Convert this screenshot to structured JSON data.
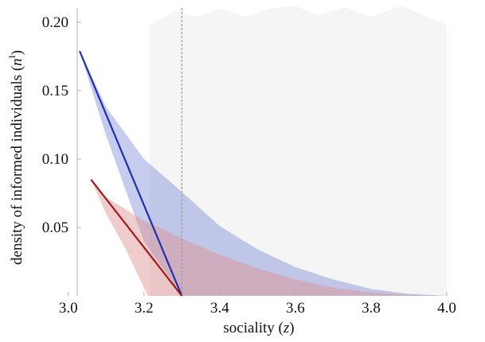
{
  "chart_data": {
    "type": "area",
    "xlabel": "sociality (",
    "xlabel_var": "z",
    "xlabel_close": ")",
    "ylabel": "density of informed individuals (",
    "ylabel_var": "n",
    "ylabel_sup": "I",
    "ylabel_close": ")",
    "xlim": [
      2.95,
      4.0
    ],
    "ylim": [
      0.0,
      0.2
    ],
    "x_ticks": [
      {
        "value": 3.0,
        "label": "3.0"
      },
      {
        "value": 3.2,
        "label": "3.2"
      },
      {
        "value": 3.4,
        "label": "3.4"
      },
      {
        "value": 3.6,
        "label": "3.6"
      },
      {
        "value": 3.8,
        "label": "3.8"
      },
      {
        "value": 4.0,
        "label": "4.0"
      }
    ],
    "y_ticks": [
      {
        "value": 0.05,
        "label": "0.05"
      },
      {
        "value": 0.1,
        "label": "0.10"
      },
      {
        "value": 0.15,
        "label": "0.15"
      },
      {
        "value": 0.2,
        "label": "0.20"
      }
    ],
    "vertical_reference": {
      "x": 3.3,
      "color": "#999999",
      "style": "dashed"
    },
    "background_band": {
      "x": [
        3.215,
        3.28,
        3.34,
        3.4,
        3.47,
        3.53,
        3.6,
        3.66,
        3.73,
        3.8,
        3.88,
        3.94,
        4.0
      ],
      "top": [
        0.198,
        0.208,
        0.204,
        0.21,
        0.204,
        0.21,
        0.212,
        0.205,
        0.211,
        0.204,
        0.212,
        0.205,
        0.198
      ],
      "color": "#f5f5f5"
    },
    "series": [
      {
        "color": "#1f2fb4",
        "fill": "#7f8ed8",
        "fill_opacity": 0.45,
        "line": {
          "x": [
            3.03,
            3.3
          ],
          "y": [
            0.179,
            0.0
          ]
        },
        "band_upper": {
          "x": [
            3.03,
            3.1,
            3.2,
            3.3,
            3.4,
            3.5,
            3.6,
            3.7,
            3.8,
            3.9,
            4.0
          ],
          "y": [
            0.179,
            0.138,
            0.1,
            0.076,
            0.051,
            0.034,
            0.021,
            0.012,
            0.005,
            0.0015,
            0.0
          ]
        },
        "band_lower": {
          "x": [
            3.03,
            3.1,
            3.2,
            3.3
          ],
          "y": [
            0.179,
            0.117,
            0.04,
            0.0
          ]
        }
      },
      {
        "color": "#a01818",
        "fill": "#e08d8d",
        "fill_opacity": 0.45,
        "line": {
          "x": [
            3.06,
            3.3
          ],
          "y": [
            0.085,
            0.0
          ]
        },
        "band_upper": {
          "x": [
            3.06,
            3.1,
            3.2,
            3.3,
            3.4,
            3.5,
            3.6,
            3.7,
            3.8,
            3.9,
            4.0
          ],
          "y": [
            0.085,
            0.072,
            0.055,
            0.042,
            0.03,
            0.02,
            0.012,
            0.006,
            0.0025,
            0.0008,
            0.0
          ]
        },
        "band_lower": {
          "x": [
            3.06,
            3.1,
            3.15,
            3.21
          ],
          "y": [
            0.085,
            0.06,
            0.035,
            0.0
          ]
        }
      }
    ]
  }
}
